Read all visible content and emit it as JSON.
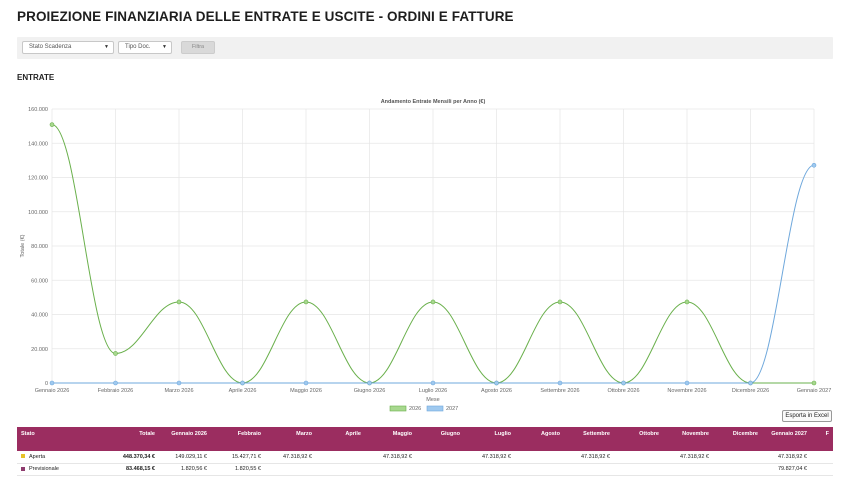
{
  "page": {
    "title": "PROIEZIONE FINANZIARIA DELLE ENTRATE E USCITE - ORDINI E FATTURE"
  },
  "filters": {
    "stato_scadenza": "Stato Scadenza",
    "tipo_doc": "Tipo Doc.",
    "filter_button": "Filtra"
  },
  "section": {
    "title": "ENTRATE"
  },
  "export_button": "Esporta in Excel",
  "chart_data": {
    "type": "line",
    "title": "Andamento Entrate Mensili per Anno (€)",
    "xlabel": "Mese",
    "ylabel": "Totale (€)",
    "ylim": [
      0,
      160000
    ],
    "yticks": [
      0,
      20000,
      40000,
      60000,
      80000,
      100000,
      120000,
      140000,
      160000
    ],
    "ytick_labels": [
      "0",
      "20.000",
      "40.000",
      "60.000",
      "80.000",
      "100.000",
      "120.000",
      "140.000",
      "160.000"
    ],
    "categories": [
      "Gennaio 2026",
      "Febbraio 2026",
      "Marzo 2026",
      "Aprile 2026",
      "Maggio 2026",
      "Giugno 2026",
      "Luglio 2026",
      "Agosto 2026",
      "Settembre 2026",
      "Ottobre 2026",
      "Novembre 2026",
      "Dicembre 2026",
      "Gennaio 2027"
    ],
    "grid": true,
    "legend_position": "bottom",
    "series": [
      {
        "name": "2026",
        "color": "#6ab04c",
        "fill": "#a8d88f",
        "values": [
          150849.67,
          17248.27,
          47318.92,
          0,
          47318.92,
          0,
          47318.92,
          0,
          47318.92,
          0,
          47318.92,
          0,
          0
        ]
      },
      {
        "name": "2027",
        "color": "#6fa8dc",
        "fill": "#9fc9ef",
        "values": [
          0,
          0,
          0,
          0,
          0,
          0,
          0,
          0,
          0,
          0,
          0,
          0,
          127145.96
        ]
      }
    ]
  },
  "table": {
    "headers": [
      "Stato",
      "Totale",
      "Gennaio 2026",
      "Febbraio",
      "Marzo",
      "Aprile",
      "Maggio",
      "Giugno",
      "Luglio",
      "Agosto",
      "Settembre",
      "Ottobre",
      "Novembre",
      "Dicembre",
      "Gennaio 2027",
      "F"
    ],
    "rows": [
      {
        "stato": "Aperta",
        "color": "#e6c229",
        "cells": [
          "448.370,34 €",
          "149.029,11 €",
          "15.427,71 €",
          "47.318,92 €",
          "",
          "47.318,92 €",
          "",
          "47.318,92 €",
          "",
          "47.318,92 €",
          "",
          "47.318,92 €",
          "",
          "47.318,92 €",
          ""
        ]
      },
      {
        "stato": "Previsionale",
        "color": "#8e3b6e",
        "cells": [
          "83.468,15 €",
          "1.820,56 €",
          "1.820,55 €",
          "",
          "",
          "",
          "",
          "",
          "",
          "",
          "",
          "",
          "",
          "79.827,04 €",
          ""
        ]
      }
    ]
  }
}
